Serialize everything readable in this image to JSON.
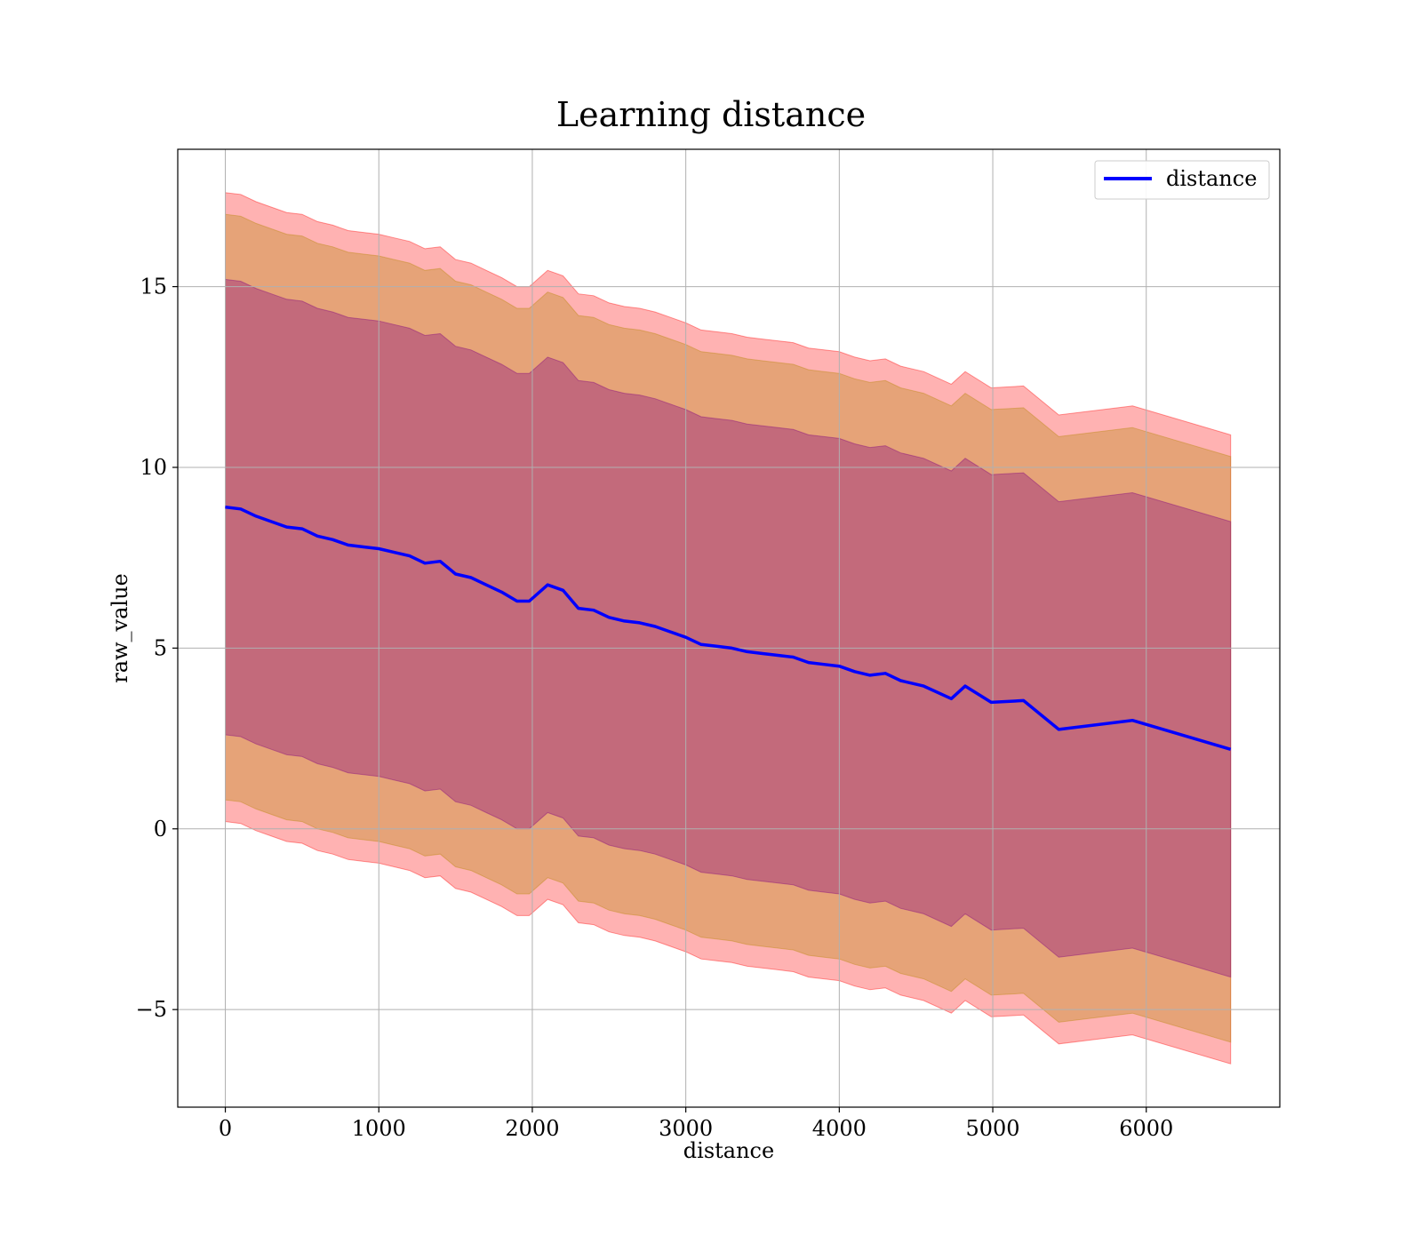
{
  "chart_data": {
    "type": "line",
    "title": "Learning distance",
    "xlabel": "distance",
    "ylabel": "raw_value",
    "xlim": [
      -310,
      6870
    ],
    "ylim": [
      -7.7,
      18.8
    ],
    "xticks": [
      0,
      1000,
      2000,
      3000,
      4000,
      5000,
      6000
    ],
    "xtick_labels": [
      "0",
      "1000",
      "2000",
      "3000",
      "4000",
      "5000",
      "6000"
    ],
    "yticks": [
      -5,
      0,
      5,
      10,
      15
    ],
    "ytick_labels": [
      "−5",
      "0",
      "5",
      "10",
      "15"
    ],
    "grid": true,
    "legend": {
      "position": "top-right",
      "entries": [
        "distance"
      ]
    },
    "colors": {
      "line": "#0000ff",
      "band_outer": "#ff0000",
      "band_middle": "#b8860b",
      "band_inner": "#800080"
    },
    "series": [
      {
        "name": "distance",
        "x": [
          0,
          100,
          200,
          300,
          400,
          500,
          600,
          700,
          800,
          900,
          1000,
          1100,
          1200,
          1300,
          1400,
          1500,
          1600,
          1700,
          1800,
          1900,
          1980,
          2100,
          2200,
          2300,
          2400,
          2500,
          2600,
          2700,
          2800,
          2900,
          3000,
          3100,
          3200,
          3300,
          3400,
          3500,
          3600,
          3700,
          3800,
          3900,
          4000,
          4100,
          4200,
          4300,
          4400,
          4550,
          4730,
          4820,
          4990,
          5200,
          5430,
          5910,
          6550
        ],
        "y": [
          8.9,
          8.85,
          8.65,
          8.5,
          8.35,
          8.3,
          8.1,
          8.0,
          7.85,
          7.8,
          7.75,
          7.65,
          7.55,
          7.35,
          7.4,
          7.05,
          6.95,
          6.75,
          6.55,
          6.3,
          6.3,
          6.75,
          6.6,
          6.1,
          6.05,
          5.85,
          5.75,
          5.7,
          5.6,
          5.45,
          5.3,
          5.1,
          5.05,
          5.0,
          4.9,
          4.85,
          4.8,
          4.75,
          4.6,
          4.55,
          4.5,
          4.35,
          4.25,
          4.3,
          4.1,
          3.95,
          3.6,
          3.95,
          3.5,
          3.55,
          2.75,
          3.0,
          2.2
        ]
      }
    ],
    "bands": [
      {
        "sigma": 1,
        "color": "#800080",
        "opacity": 0.35,
        "halfwidth": 6.3
      },
      {
        "sigma": 2,
        "color": "#b8860b",
        "opacity": 0.35,
        "halfwidth": 8.1
      },
      {
        "sigma": 3,
        "color": "#ff0000",
        "opacity": 0.3,
        "halfwidth": 8.7
      }
    ]
  }
}
